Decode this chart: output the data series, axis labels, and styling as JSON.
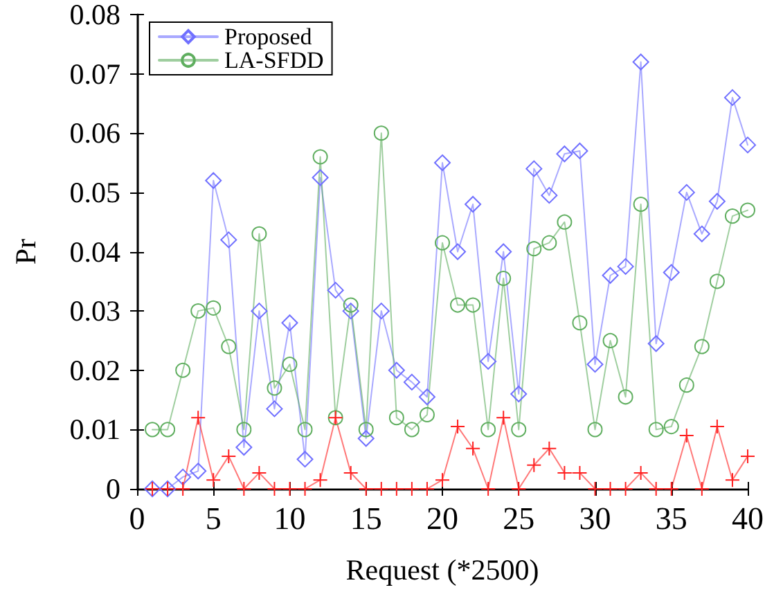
{
  "chart_data": {
    "type": "line",
    "xlabel": "Request (*2500)",
    "ylabel": "Pr",
    "x": [
      1,
      2,
      3,
      4,
      5,
      6,
      7,
      8,
      9,
      10,
      11,
      12,
      13,
      14,
      15,
      16,
      17,
      18,
      19,
      20,
      21,
      22,
      23,
      24,
      25,
      26,
      27,
      28,
      29,
      30,
      31,
      32,
      33,
      34,
      35,
      36,
      37,
      38,
      39,
      40
    ],
    "series": [
      {
        "name": "Proposed",
        "color": "#7070ff",
        "marker": "diamond",
        "values": [
          0,
          0,
          0.002,
          0.003,
          0.052,
          0.042,
          0.007,
          0.03,
          0.0135,
          0.028,
          0.005,
          0.0525,
          0.0335,
          0.03,
          0.0085,
          0.03,
          0.02,
          0.018,
          0.0155,
          0.055,
          0.04,
          0.048,
          0.0215,
          0.04,
          0.016,
          0.054,
          0.0495,
          0.0565,
          0.057,
          0.021,
          0.036,
          0.0375,
          0.072,
          0.0245,
          0.0365,
          0.05,
          0.043,
          0.0485,
          0.066,
          0.058
        ]
      },
      {
        "name": "LA-SFDD",
        "color": "#5fae5f",
        "marker": "circle",
        "values": [
          0.01,
          0.01,
          0.02,
          0.03,
          0.0305,
          0.024,
          0.01,
          0.043,
          0.017,
          0.021,
          0.01,
          0.056,
          0.012,
          0.031,
          0.01,
          0.06,
          0.012,
          0.01,
          0.0125,
          0.0415,
          0.031,
          0.031,
          0.01,
          0.0355,
          0.01,
          0.0405,
          0.0415,
          0.045,
          0.028,
          0.01,
          0.025,
          0.0155,
          0.048,
          0.01,
          0.0105,
          0.0175,
          0.024,
          0.035,
          0.046,
          0.047
        ]
      },
      {
        "color": "#ff2020",
        "marker": "cross",
        "values": [
          0,
          0,
          0,
          0.012,
          0.0015,
          0.0055,
          0,
          0.0027,
          0,
          0,
          0,
          0.0015,
          0.012,
          0.0027,
          0,
          0,
          0,
          0,
          0,
          0.0015,
          0.0105,
          0.0068,
          0,
          0.012,
          0,
          0.004,
          0.0068,
          0.0027,
          0.0027,
          0,
          0,
          0,
          0.0027,
          0,
          0,
          0.009,
          0,
          0.0105,
          0.0015,
          0.0055
        ]
      }
    ],
    "xlim": [
      0,
      40
    ],
    "xticks": [
      0,
      5,
      10,
      15,
      20,
      25,
      30,
      35,
      40
    ],
    "ylim": [
      0,
      0.08
    ],
    "yticks": [
      0,
      0.01,
      0.02,
      0.03,
      0.04,
      0.05,
      0.06,
      0.07,
      0.08
    ],
    "grid": false,
    "legend": "top left"
  }
}
